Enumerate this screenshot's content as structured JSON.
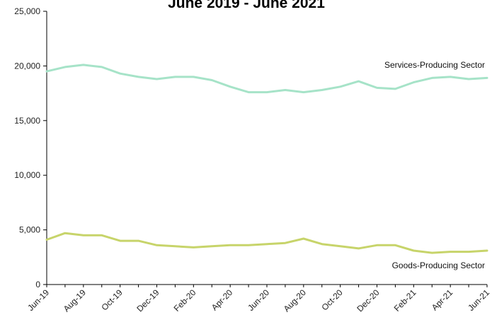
{
  "chart_data": {
    "type": "line",
    "title": "June 2019 - June 2021",
    "xlabel": "",
    "ylabel": "",
    "ylim": [
      0,
      25000
    ],
    "yticks": [
      "0",
      "5,000",
      "10,000",
      "15,000",
      "20,000",
      "25,000"
    ],
    "ytick_values": [
      0,
      5000,
      10000,
      15000,
      20000,
      25000
    ],
    "x": [
      "Jun-19",
      "Jul-19",
      "Aug-19",
      "Sep-19",
      "Oct-19",
      "Nov-19",
      "Dec-19",
      "Jan-20",
      "Feb-20",
      "Mar-20",
      "Apr-20",
      "May-20",
      "Jun-20",
      "Jul-20",
      "Aug-20",
      "Sep-20",
      "Oct-20",
      "Nov-20",
      "Dec-20",
      "Jan-21",
      "Feb-21",
      "Mar-21",
      "Apr-21",
      "May-21",
      "Jun-21"
    ],
    "xticks": [
      "Jun-19",
      "Aug-19",
      "Oct-19",
      "Dec-19",
      "Feb-20",
      "Apr-20",
      "Jun-20",
      "Aug-20",
      "Oct-20",
      "Dec-20",
      "Feb-21",
      "Apr-21",
      "Jun-21"
    ],
    "grid": false,
    "series": [
      {
        "name": "Services-Producing Sector",
        "color": "#a6e3c8",
        "values": [
          19500,
          19900,
          20100,
          19900,
          19300,
          19000,
          18800,
          19000,
          19000,
          18700,
          18100,
          17600,
          17600,
          17800,
          17600,
          17800,
          18100,
          18600,
          18000,
          17900,
          18500,
          18900,
          19000,
          18800,
          18900
        ]
      },
      {
        "name": "Goods-Producing Sector",
        "color": "#c7d46a",
        "values": [
          4100,
          4700,
          4500,
          4500,
          4000,
          4000,
          3600,
          3500,
          3400,
          3500,
          3600,
          3600,
          3700,
          3800,
          4200,
          3700,
          3500,
          3300,
          3600,
          3600,
          3100,
          2900,
          3000,
          3000,
          3100
        ]
      }
    ]
  }
}
